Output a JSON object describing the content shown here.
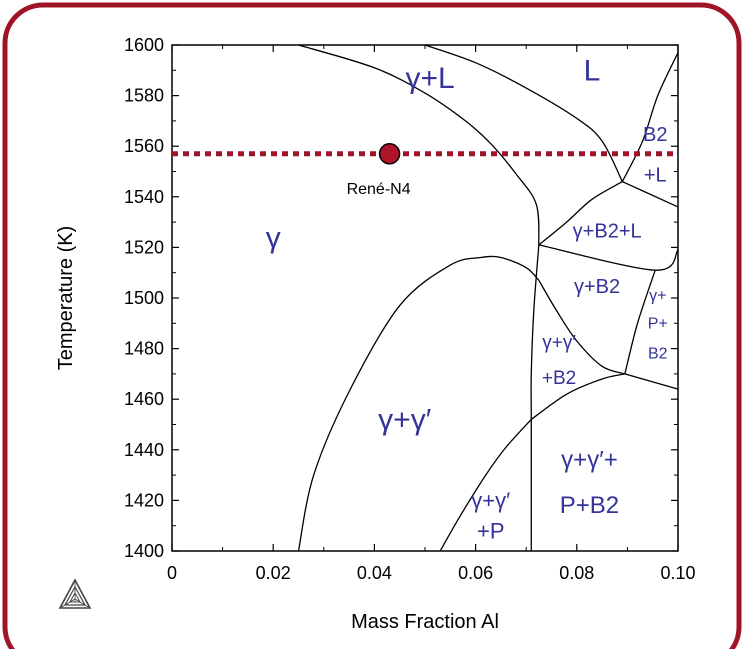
{
  "chart_data": {
    "type": "line",
    "subtype": "phase-diagram",
    "xlabel": "Mass Fraction Al",
    "ylabel": "Temperature (K)",
    "xlim": [
      0,
      0.1
    ],
    "ylim": [
      1400,
      1600
    ],
    "x_ticks": [
      0,
      0.02,
      0.04,
      0.06,
      0.08,
      0.1
    ],
    "x_tick_labels": [
      "0",
      "0.02",
      "0.04",
      "0.06",
      "0.08",
      "0.10"
    ],
    "y_ticks": [
      1400,
      1420,
      1440,
      1460,
      1480,
      1500,
      1520,
      1540,
      1560,
      1580,
      1600
    ],
    "y_tick_labels": [
      "1400",
      "1420",
      "1440",
      "1460",
      "1480",
      "1500",
      "1520",
      "1540",
      "1560",
      "1580",
      "1600"
    ],
    "grid": false,
    "boundaries": [
      {
        "points": [
          [
            0.025,
            1600
          ],
          [
            0.04,
            1591
          ],
          [
            0.05,
            1581
          ],
          [
            0.058,
            1570
          ],
          [
            0.063,
            1561
          ],
          [
            0.068,
            1549
          ],
          [
            0.072,
            1537
          ],
          [
            0.0725,
            1521
          ]
        ]
      },
      {
        "points": [
          [
            0.05,
            1600
          ],
          [
            0.06,
            1593
          ],
          [
            0.07,
            1583
          ],
          [
            0.08,
            1571
          ],
          [
            0.085,
            1562
          ],
          [
            0.089,
            1546
          ]
        ]
      },
      {
        "points": [
          [
            0.089,
            1546
          ],
          [
            0.093,
            1562
          ],
          [
            0.096,
            1580
          ],
          [
            0.1,
            1597
          ]
        ]
      },
      {
        "points": [
          [
            0.089,
            1546
          ],
          [
            0.1,
            1536
          ]
        ]
      },
      {
        "points": [
          [
            0.0725,
            1521
          ],
          [
            0.078,
            1530
          ],
          [
            0.083,
            1539
          ],
          [
            0.089,
            1546
          ]
        ]
      },
      {
        "points": [
          [
            0.0725,
            1521
          ],
          [
            0.0955,
            1511
          ],
          [
            0.1,
            1519
          ]
        ]
      },
      {
        "points": [
          [
            0.0955,
            1511
          ],
          [
            0.092,
            1490
          ],
          [
            0.0895,
            1470
          ]
        ]
      },
      {
        "points": [
          [
            0.0725,
            1521
          ],
          [
            0.0715,
            1495
          ],
          [
            0.071,
            1470
          ],
          [
            0.071,
            1452
          ],
          [
            0.071,
            1400
          ]
        ]
      },
      {
        "points": [
          [
            0.0725,
            1507
          ],
          [
            0.076,
            1495
          ],
          [
            0.08,
            1483
          ],
          [
            0.085,
            1473
          ],
          [
            0.0895,
            1470
          ]
        ]
      },
      {
        "points": [
          [
            0.071,
            1452
          ],
          [
            0.078,
            1462
          ],
          [
            0.085,
            1468
          ],
          [
            0.0895,
            1470
          ]
        ]
      },
      {
        "points": [
          [
            0.0895,
            1470
          ],
          [
            0.1,
            1464
          ]
        ]
      },
      {
        "points": [
          [
            0.025,
            1400
          ],
          [
            0.028,
            1430
          ],
          [
            0.035,
            1463
          ],
          [
            0.045,
            1497
          ],
          [
            0.055,
            1513
          ],
          [
            0.061,
            1516
          ],
          [
            0.065,
            1516
          ],
          [
            0.07,
            1512
          ],
          [
            0.0725,
            1507
          ]
        ]
      },
      {
        "points": [
          [
            0.053,
            1400
          ],
          [
            0.057,
            1414
          ],
          [
            0.062,
            1430
          ],
          [
            0.066,
            1441
          ],
          [
            0.071,
            1452
          ]
        ]
      }
    ],
    "reference_line": {
      "y": 1557,
      "color": "#a01428",
      "style": "dotted"
    },
    "marker": {
      "x": 0.043,
      "y": 1557,
      "label": "René-N4",
      "color": "#b0142a"
    },
    "phase_labels": [
      {
        "text": "γ",
        "x": 0.02,
        "y": 1520,
        "size": 30
      },
      {
        "text": "γ+L",
        "x": 0.051,
        "y": 1583,
        "size": 30
      },
      {
        "text": "L",
        "x": 0.083,
        "y": 1586,
        "size": 30
      },
      {
        "text": "B2",
        "x": 0.0955,
        "y": 1562,
        "size": 20
      },
      {
        "text": "+L",
        "x": 0.0955,
        "y": 1546,
        "size": 20
      },
      {
        "text": "γ+B2+L",
        "x": 0.086,
        "y": 1524,
        "size": 20
      },
      {
        "text": "γ+B2",
        "x": 0.084,
        "y": 1502,
        "size": 20
      },
      {
        "text": "γ+",
        "x": 0.096,
        "y": 1499,
        "size": 16
      },
      {
        "text": "P+",
        "x": 0.096,
        "y": 1488,
        "size": 16
      },
      {
        "text": "B2",
        "x": 0.096,
        "y": 1476,
        "size": 16
      },
      {
        "text": "γ+γ′",
        "x": 0.0765,
        "y": 1480,
        "size": 19
      },
      {
        "text": "+B2",
        "x": 0.0765,
        "y": 1466,
        "size": 19
      },
      {
        "text": "γ+γ′",
        "x": 0.046,
        "y": 1448,
        "size": 30
      },
      {
        "text": "γ+γ′+",
        "x": 0.0825,
        "y": 1433,
        "size": 24
      },
      {
        "text": "P+B2",
        "x": 0.0825,
        "y": 1415,
        "size": 24
      },
      {
        "text": "γ+γ′",
        "x": 0.063,
        "y": 1417,
        "size": 22
      },
      {
        "text": "+P",
        "x": 0.063,
        "y": 1405,
        "size": 22
      }
    ],
    "frame_color": "#a01428",
    "label_color": "#33339a"
  }
}
